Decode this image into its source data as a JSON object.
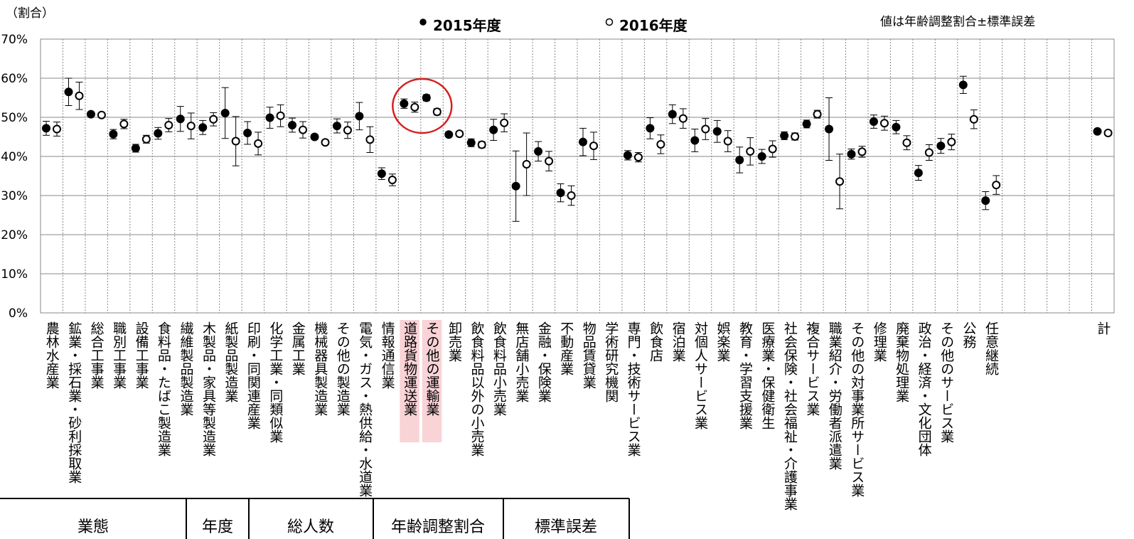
{
  "chart_data": {
    "type": "errorbar",
    "y_axis_label": "（割合）",
    "annotation": "値は年齢調整割合±標準誤差",
    "categories": [
      "農林水産業",
      "鉱業・採石業・砂利採取業",
      "総合工事業",
      "職別工事業",
      "設備工事業",
      "食料品・たばこ製造業",
      "繊維製品製造業",
      "木製品・家具等製造業",
      "紙製品製造業",
      "印刷・同関連産業",
      "化学工業・同類似業",
      "金属工業",
      "機械器具製造業",
      "その他の製造業",
      "電気・ガス・熱供給・水道業",
      "情報通信業",
      "道路貨物運送業",
      "その他の運輸業",
      "卸売業",
      "飲食料品以外の小売業",
      "飲食料品小売業",
      "無店舗小売業",
      "金融・保険業",
      "不動産業",
      "物品賃貸業",
      "学術研究機関",
      "専門・技術サービス業",
      "飲食店",
      "宿泊業",
      "対個人サービス業",
      "娯楽業",
      "教育・学習支援業",
      "医療業・保健衛生",
      "社会保険・社会福祉・介護事業",
      "複合サービス業",
      "職業紹介・労働者派遣業",
      "その他の対事業所サービス業",
      "修理業",
      "廃棄物処理業",
      "政治・経済・文化団体",
      "その他のサービス業",
      "公務",
      "任意継続",
      null,
      null,
      null,
      null,
      "計"
    ],
    "highlighted_categories": [
      16,
      17
    ],
    "series": [
      {
        "name": "2015年度",
        "color": "#000000",
        "marker": "filled",
        "values": [
          47.2,
          56.5,
          50.8,
          45.7,
          42.1,
          45.9,
          49.6,
          47.4,
          51.1,
          46.0,
          49.9,
          48.0,
          45.0,
          47.8,
          50.3,
          35.6,
          53.5,
          55.0,
          45.6,
          43.5,
          46.8,
          32.4,
          41.3,
          30.7,
          43.7,
          null,
          40.3,
          47.2,
          50.8,
          44.1,
          46.4,
          39.1,
          40.0,
          45.3,
          48.3,
          47.0,
          40.6,
          48.9,
          47.5,
          35.8,
          42.7,
          58.3,
          28.7,
          null,
          null,
          null,
          null,
          46.4
        ],
        "errors": [
          1.8,
          3.5,
          0.5,
          1.2,
          1.0,
          1.5,
          3.2,
          1.8,
          6.5,
          2.9,
          2.7,
          1.8,
          0.6,
          1.8,
          3.5,
          1.5,
          1.2,
          0.8,
          0.6,
          1.0,
          2.7,
          9.0,
          2.5,
          2.3,
          3.5,
          null,
          1.2,
          2.7,
          2.4,
          2.9,
          2.8,
          3.3,
          1.8,
          1.0,
          1.0,
          8.0,
          1.3,
          1.7,
          1.7,
          1.9,
          1.9,
          2.2,
          2.3,
          null,
          null,
          null,
          null,
          null
        ]
      },
      {
        "name": "2016年度",
        "color": "#000000",
        "marker": "hollow",
        "values": [
          47.0,
          55.5,
          50.6,
          48.3,
          44.4,
          48.0,
          47.8,
          49.5,
          43.9,
          43.3,
          50.4,
          46.8,
          43.6,
          46.7,
          44.3,
          34.0,
          52.6,
          51.4,
          45.8,
          43.0,
          48.6,
          38.0,
          38.8,
          30.0,
          42.7,
          null,
          39.8,
          43.1,
          49.7,
          47.0,
          43.9,
          41.3,
          41.9,
          45.1,
          50.8,
          33.6,
          41.2,
          48.5,
          43.5,
          41.0,
          43.7,
          49.5,
          32.7,
          null,
          null,
          null,
          null,
          46.0
        ],
        "errors": [
          1.8,
          3.5,
          0.5,
          1.2,
          1.0,
          1.7,
          3.3,
          1.7,
          6.3,
          2.9,
          2.8,
          2.1,
          0.6,
          2.1,
          3.3,
          1.5,
          1.3,
          0.8,
          0.6,
          0.8,
          2.3,
          8.0,
          2.5,
          2.5,
          3.5,
          null,
          1.2,
          2.4,
          2.5,
          2.7,
          2.7,
          3.5,
          2.1,
          0.9,
          1.0,
          7.0,
          1.4,
          1.8,
          1.8,
          2.0,
          2.0,
          2.4,
          2.4,
          null,
          null,
          null,
          null,
          null
        ]
      }
    ],
    "ylim": [
      0,
      70
    ],
    "yticks": [
      {
        "value": 0,
        "label": "0%"
      },
      {
        "value": 10,
        "label": "10%"
      },
      {
        "value": 20,
        "label": "20%"
      },
      {
        "value": 30,
        "label": "30%"
      },
      {
        "value": 40,
        "label": "40%"
      },
      {
        "value": 50,
        "label": "50%"
      },
      {
        "value": 60,
        "label": "60%"
      },
      {
        "value": 70,
        "label": "70%"
      }
    ],
    "grid": true
  },
  "table": {
    "header": [
      "業態",
      "年度",
      "総人数",
      "年齢調整割合",
      "標準誤差"
    ]
  }
}
